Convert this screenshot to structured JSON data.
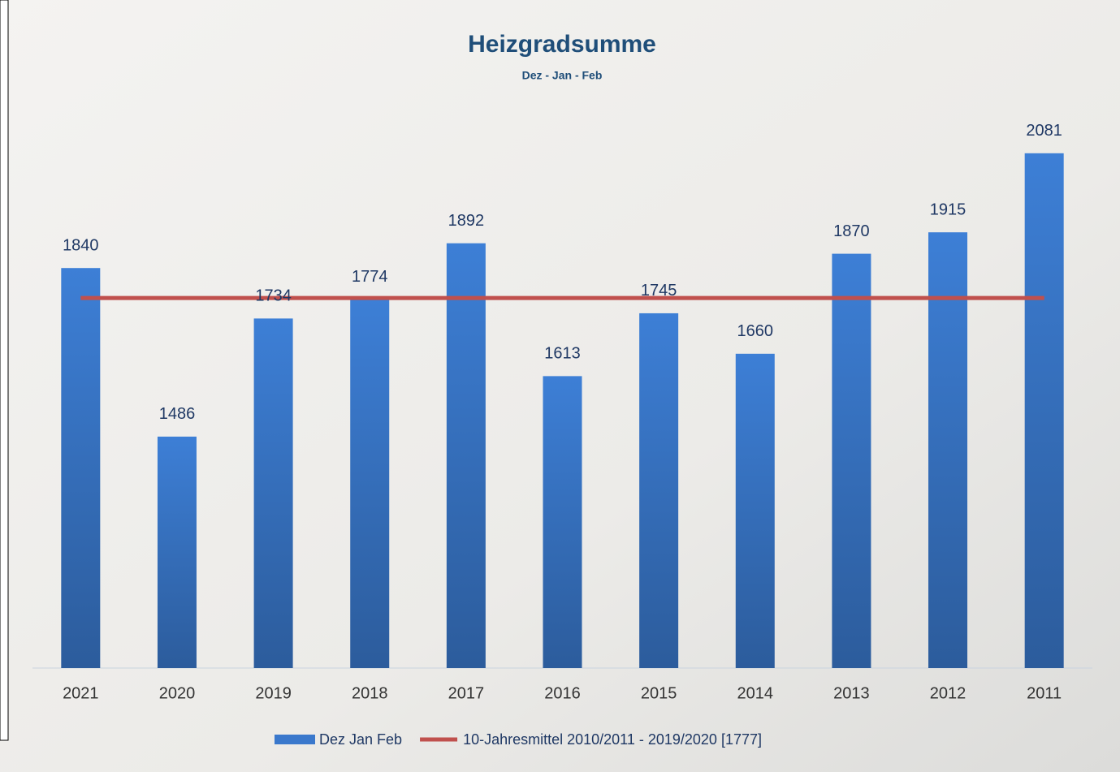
{
  "chart_data": {
    "type": "bar",
    "title": "Heizgradsumme",
    "subtitle": "Dez - Jan - Feb",
    "categories": [
      "2021",
      "2020",
      "2019",
      "2018",
      "2017",
      "2016",
      "2015",
      "2014",
      "2013",
      "2012",
      "2011"
    ],
    "series": [
      {
        "name": "Dez Jan Feb",
        "type": "bar",
        "color": "#3a78cc",
        "values": [
          1840,
          1486,
          1734,
          1774,
          1892,
          1613,
          1745,
          1660,
          1870,
          1915,
          2081
        ]
      },
      {
        "name": "10-Jahresmittel 2010/2011 - 2019/2020 [1777]",
        "type": "line",
        "color": "#c0504d",
        "values": [
          1777,
          1777,
          1777,
          1777,
          1777,
          1777,
          1777,
          1777,
          1777,
          1777,
          1777
        ]
      }
    ],
    "ylim": [
      1000,
      2200
    ]
  }
}
